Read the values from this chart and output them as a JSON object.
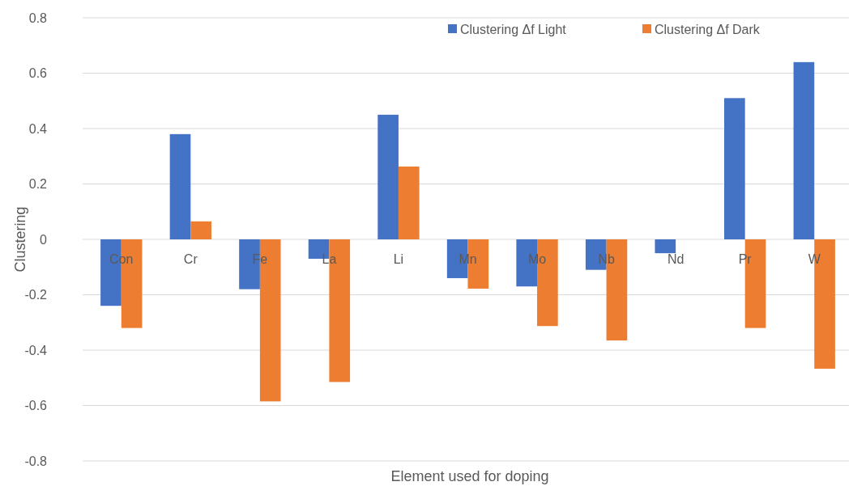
{
  "chart_data": {
    "type": "bar",
    "xlabel": "Element used for doping",
    "ylabel": "Clustering",
    "categories": [
      "Con",
      "Cr",
      "Fe",
      "La",
      "Li",
      "Mn",
      "Mo",
      "Nb",
      "Nd",
      "Pr",
      "W"
    ],
    "series": [
      {
        "name": "Clustering Δf Light",
        "color": "#4472c4",
        "values": [
          -0.24,
          0.38,
          -0.18,
          -0.07,
          0.45,
          -0.14,
          -0.17,
          -0.11,
          -0.05,
          0.51,
          0.64
        ]
      },
      {
        "name": "Clustering Δf Dark",
        "color": "#ed7d31",
        "values": [
          -0.32,
          0.065,
          -0.585,
          -0.515,
          0.263,
          -0.178,
          -0.313,
          -0.365,
          null,
          -0.32,
          -0.467
        ]
      }
    ],
    "ylim": [
      -0.8,
      0.8
    ],
    "yticks": [
      {
        "value": -0.8,
        "label": "-0.8"
      },
      {
        "value": -0.6,
        "label": "-0.6"
      },
      {
        "value": -0.4,
        "label": "-0.4"
      },
      {
        "value": -0.2,
        "label": "-0.2"
      },
      0,
      {
        "value": 0.2,
        "label": "0.2"
      },
      {
        "value": 0.4,
        "label": "0.4"
      },
      {
        "value": 0.6,
        "label": "0.6"
      },
      {
        "value": 0.8,
        "label": "0.8"
      }
    ],
    "grid": "y",
    "legend": "top right"
  }
}
